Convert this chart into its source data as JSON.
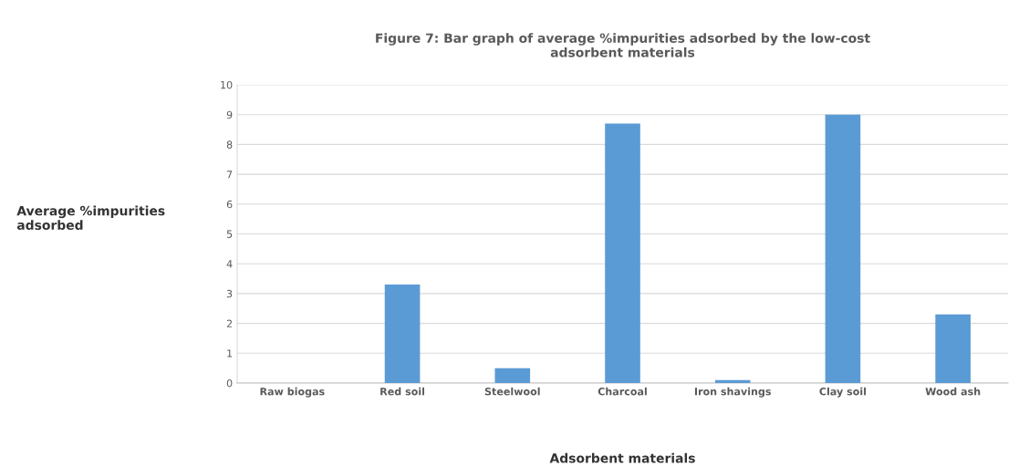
{
  "chart_data": {
    "type": "bar",
    "title": "Figure 7: Bar graph of average %impurities adsorbed by the low-cost\nadsorbent materials",
    "xlabel": "Adsorbent materials",
    "ylabel": "Average %impurities\nadsorbed",
    "categories": [
      "Raw biogas",
      "Red soil",
      "Steelwool",
      "Charcoal",
      "Iron shavings",
      "Clay soil",
      "Wood ash"
    ],
    "values": [
      0,
      3.3,
      0.5,
      8.7,
      0.1,
      9.0,
      2.3
    ],
    "color": "#5b9bd5",
    "ylim": [
      0,
      10
    ],
    "yticks": [
      0,
      1,
      2,
      3,
      4,
      5,
      6,
      7,
      8,
      9,
      10
    ],
    "grid": "y",
    "legend": false
  }
}
